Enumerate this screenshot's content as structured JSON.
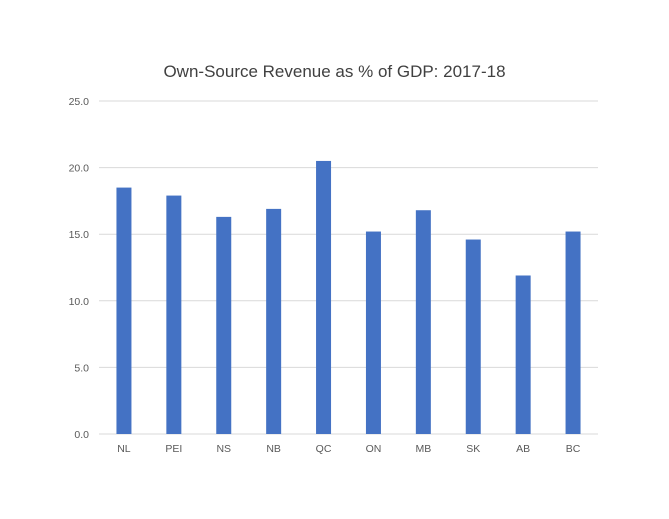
{
  "chart_data": {
    "type": "bar",
    "title": "Own-Source Revenue as % of GDP: 2017-18",
    "xlabel": "",
    "ylabel": "",
    "categories": [
      "NL",
      "PEI",
      "NS",
      "NB",
      "QC",
      "ON",
      "MB",
      "SK",
      "AB",
      "BC"
    ],
    "values": [
      18.5,
      17.9,
      16.3,
      16.9,
      20.5,
      15.2,
      16.8,
      14.6,
      11.9,
      15.2
    ],
    "ylim": [
      0,
      25
    ],
    "yticks": [
      "0.0",
      "5.0",
      "10.0",
      "15.0",
      "20.0",
      "25.0"
    ],
    "grid": true,
    "legend": "none",
    "colors": {
      "bar": "#4472C4",
      "grid": "#D9D9D9",
      "text": "#595959",
      "title": "#404040"
    }
  }
}
